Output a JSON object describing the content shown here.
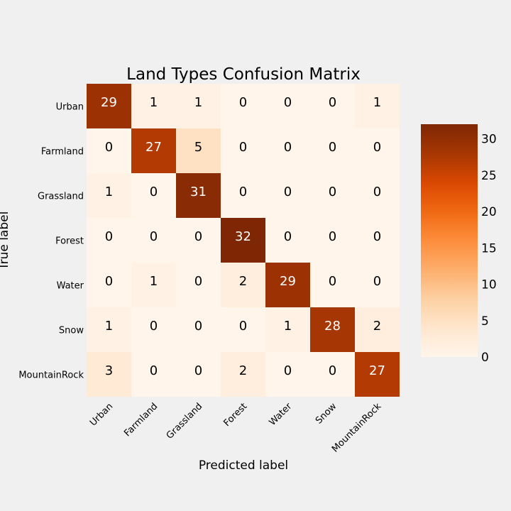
{
  "chart_data": {
    "type": "heatmap",
    "title": "Land Types Confusion Matrix",
    "xlabel": "Predicted label",
    "ylabel": "True label",
    "x_categories": [
      "Urban",
      "Farmland",
      "Grassland",
      "Forest",
      "Water",
      "Snow",
      "MountainRock"
    ],
    "y_categories": [
      "Urban",
      "Farmland",
      "Grassland",
      "Forest",
      "Water",
      "Snow",
      "MountainRock"
    ],
    "values": [
      [
        29,
        1,
        1,
        0,
        0,
        0,
        1
      ],
      [
        0,
        27,
        5,
        0,
        0,
        0,
        0
      ],
      [
        1,
        0,
        31,
        0,
        0,
        0,
        0
      ],
      [
        0,
        0,
        0,
        32,
        0,
        0,
        0
      ],
      [
        0,
        1,
        0,
        2,
        29,
        0,
        0
      ],
      [
        1,
        0,
        0,
        0,
        1,
        28,
        2
      ],
      [
        3,
        0,
        0,
        2,
        0,
        0,
        27
      ]
    ],
    "colormap": "Oranges",
    "colorbar": {
      "min": 0,
      "max": 32,
      "ticks": [
        0,
        5,
        10,
        15,
        20,
        25,
        30
      ]
    },
    "grid": false
  }
}
